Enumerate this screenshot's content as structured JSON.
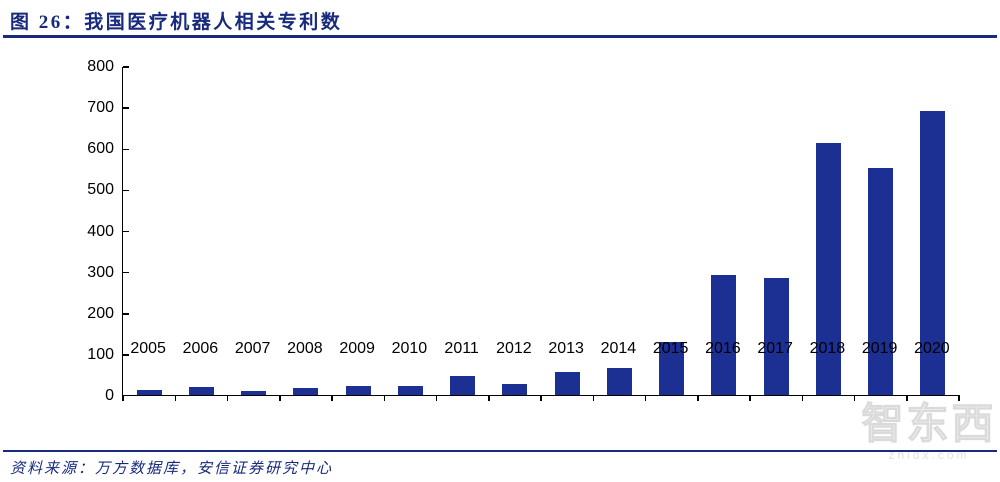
{
  "figure": {
    "caption": "图 26：我国医疗机器人相关专利数",
    "source": "资料来源：万方数据库，安信证券研究中心"
  },
  "watermark": {
    "text": "智东西",
    "subtext": "zhidx.com"
  },
  "colors": {
    "accent_navy": "#172a7d",
    "bar_blue": "#1c2f93",
    "axis_black": "#000000",
    "watermark_gray": "#c9c9c9"
  },
  "chart_data": {
    "type": "bar",
    "title": "我国医疗机器人相关专利数",
    "categories": [
      "2005",
      "2006",
      "2007",
      "2008",
      "2009",
      "2010",
      "2011",
      "2012",
      "2013",
      "2014",
      "2015",
      "2016",
      "2017",
      "2018",
      "2019",
      "2020"
    ],
    "values": [
      13,
      19,
      10,
      17,
      22,
      22,
      47,
      27,
      56,
      65,
      128,
      292,
      284,
      613,
      553,
      690
    ],
    "xlabel": "",
    "ylabel": "",
    "ylim": [
      0,
      800
    ],
    "ytick_step": 100,
    "grid": false,
    "legend": false,
    "bar_color": "#1c2f93"
  }
}
